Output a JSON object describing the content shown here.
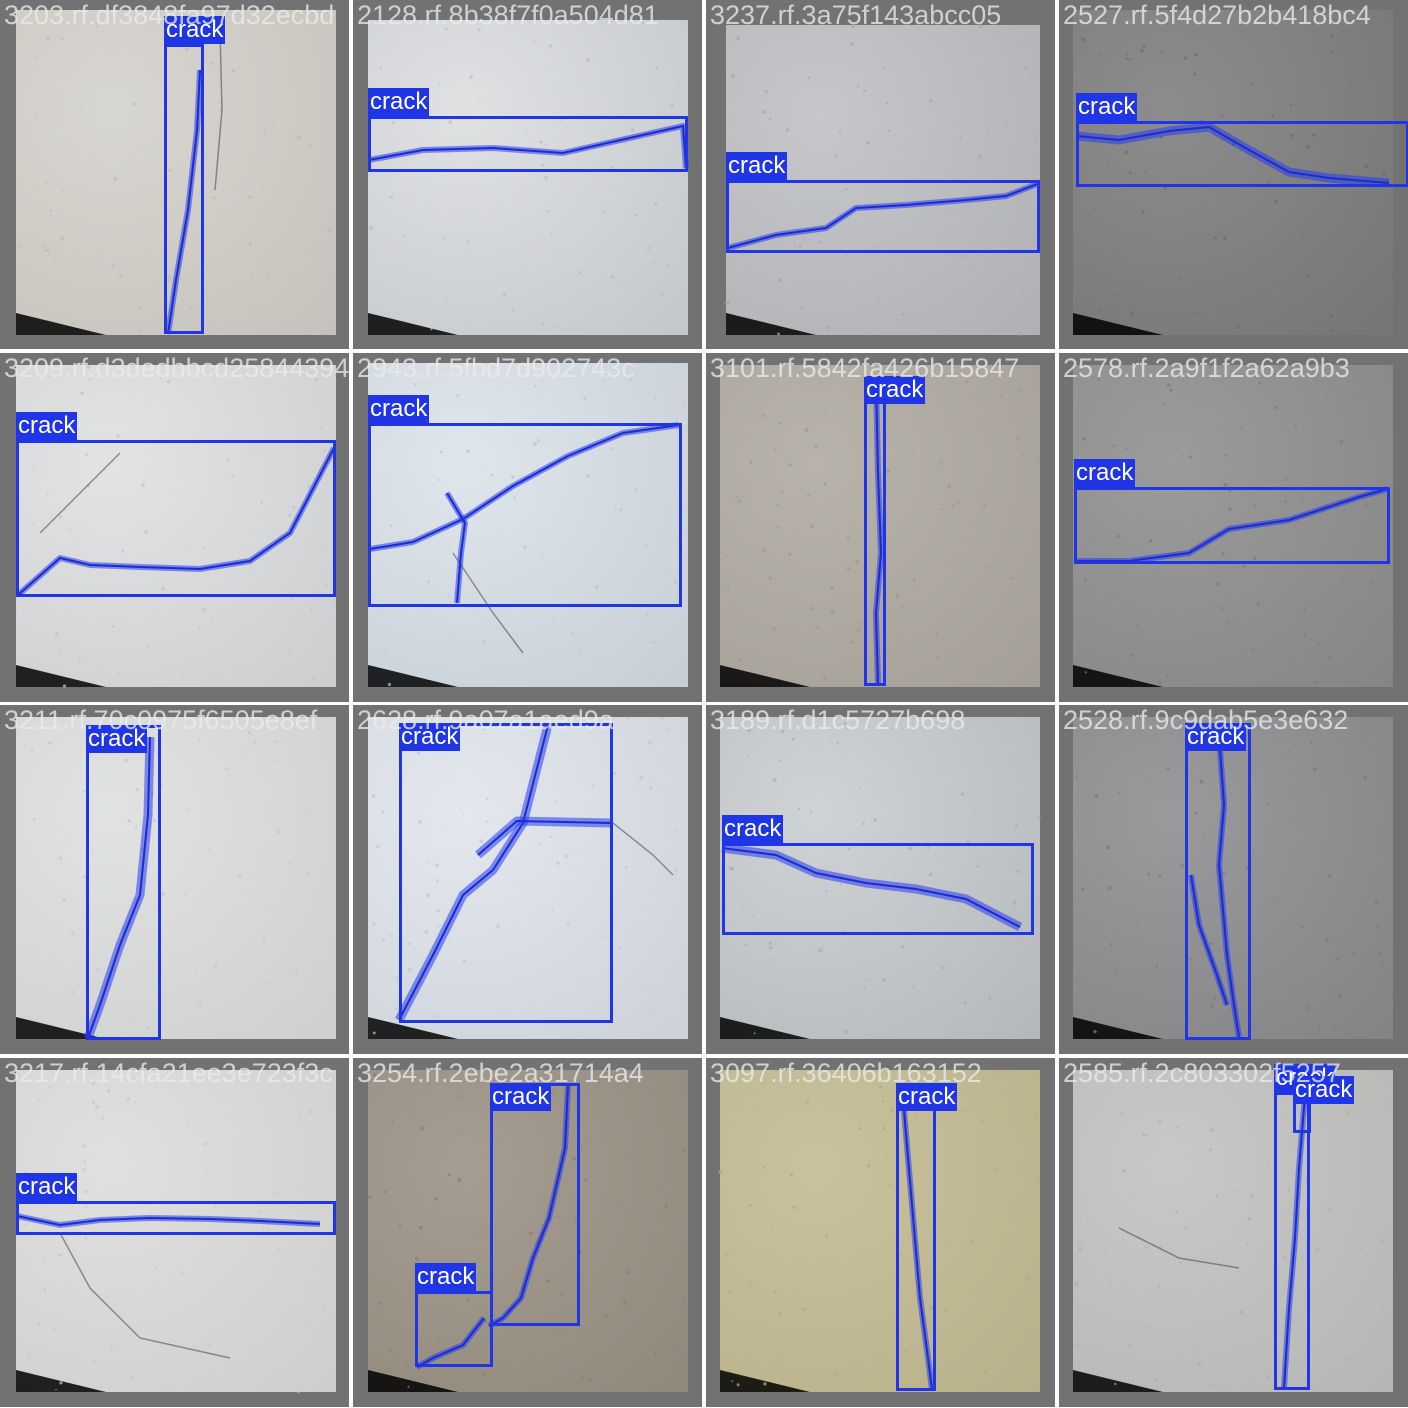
{
  "colors": {
    "box": "#1f35e6",
    "label_text": "#ffffff",
    "tile_bg": "#727272",
    "caption_text": "#ebebeb"
  },
  "tiles": [
    {
      "caption": "3203.rf.df3848fa97d32ecbd",
      "photo": "#d8d6d0",
      "grain": "#bdbab2",
      "detections": [
        {
          "label": "crack"
        }
      ]
    },
    {
      "caption": "2128.rf.8b38f7f0a504d81",
      "photo": "#dfe1e3",
      "grain": "#b9bcc0",
      "detections": [
        {
          "label": "crack"
        }
      ]
    },
    {
      "caption": "3237.rf.3a75f143abcc05",
      "photo": "#c6c7cb",
      "grain": "#a6a7ab",
      "detections": [
        {
          "label": "crack"
        }
      ]
    },
    {
      "caption": "2527.rf.5f4d27b2b418bc4",
      "photo": "#8c8c8c",
      "grain": "#6c6c6c",
      "detections": [
        {
          "label": "crack"
        }
      ]
    },
    {
      "caption": "3209.rf.d3dedbbcd25844394",
      "photo": "#e2e4e4",
      "grain": "#c2c4c6",
      "detections": [
        {
          "label": "crack"
        }
      ]
    },
    {
      "caption": "2943.rf.5fbd7d902743c",
      "photo": "#dfe6ec",
      "grain": "#bcc5cd",
      "detections": [
        {
          "label": "crack"
        }
      ]
    },
    {
      "caption": "3101.rf.5842fa426b15847",
      "photo": "#b8b3aa",
      "grain": "#9c978e",
      "detections": [
        {
          "label": "crack"
        }
      ]
    },
    {
      "caption": "2578.rf.2a9f1f2a62a9b3",
      "photo": "#9b9b9b",
      "grain": "#7c7c7c",
      "detections": [
        {
          "label": "crack"
        }
      ]
    },
    {
      "caption": "3211.rf.70c0975f6505e8ef",
      "photo": "#e1e2e2",
      "grain": "#c6c7c7",
      "detections": [
        {
          "label": "crack"
        }
      ]
    },
    {
      "caption": "2628.rf.9a07a1aed9a",
      "photo": "#e4e8ee",
      "grain": "#c2c8d0",
      "detections": [
        {
          "label": "crack"
        }
      ]
    },
    {
      "caption": "3189.rf.d1c5727b698",
      "photo": "#d0d3d6",
      "grain": "#a8acb0",
      "detections": [
        {
          "label": "crack"
        }
      ]
    },
    {
      "caption": "2528.rf.9c9dab5e3e632",
      "photo": "#9a9a9c",
      "grain": "#7a7a7c",
      "detections": [
        {
          "label": "crack"
        }
      ]
    },
    {
      "caption": "3217.rf.14cfa21ee3e723f3c",
      "photo": "#e0e0de",
      "grain": "#c6c6c4",
      "detections": [
        {
          "label": "crack"
        }
      ]
    },
    {
      "caption": "3254.rf.2ebe2a31714a4",
      "photo": "#a59d91",
      "grain": "#887f73",
      "detections": [
        {
          "label": "crack"
        },
        {
          "label": "crack"
        }
      ]
    },
    {
      "caption": "3097.rf.36406b163152",
      "photo": "#c9c29c",
      "grain": "#b0a982",
      "detections": [
        {
          "label": "crack"
        }
      ]
    },
    {
      "caption": "2585.rf.2c803302f5257",
      "photo": "#c8c8c6",
      "grain": "#aeaeac",
      "detections": [
        {
          "label": "crack"
        },
        {
          "label": "crack"
        }
      ]
    }
  ]
}
